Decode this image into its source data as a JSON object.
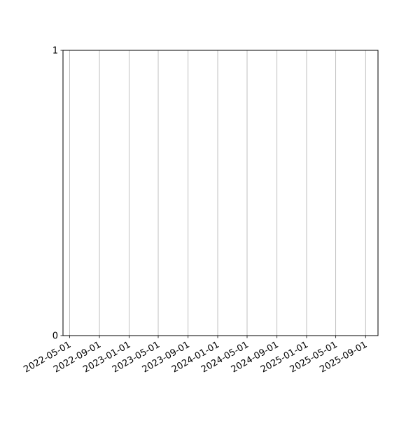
{
  "chart_data": {
    "type": "line",
    "title": "",
    "xlabel": "",
    "ylabel": "",
    "x_axis_type": "date",
    "xlim": [
      "2022-04-04",
      "2025-10-22"
    ],
    "ylim": [
      0,
      1
    ],
    "x_ticks": [
      "2022-05-01",
      "2022-09-01",
      "2023-01-01",
      "2023-05-01",
      "2023-09-01",
      "2024-01-01",
      "2024-05-01",
      "2024-09-01",
      "2025-01-01",
      "2025-05-01",
      "2025-09-01"
    ],
    "y_ticks": [
      "0",
      "1"
    ],
    "grid": {
      "x": true,
      "y": false
    },
    "grid_color": "#b0b0b0",
    "series": []
  }
}
